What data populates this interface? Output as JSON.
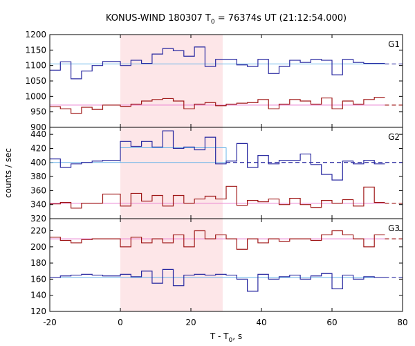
{
  "chart_data": {
    "type": "line",
    "title": "KONUS-WIND 180307 T",
    "title_sub": "0",
    "title_rest": " = 76374s UT (21:12:54.000)",
    "xlabel": "T - T",
    "xlabel_sub": "0",
    "xlabel_rest": ", s",
    "ylabel": "counts / sec",
    "xlim": [
      -20,
      80
    ],
    "x_ticks": [
      "-20",
      "0",
      "20",
      "40",
      "60",
      "80"
    ],
    "highlight_interval": [
      0,
      29
    ],
    "colors": {
      "blue": "#2828a0",
      "red": "#a01818",
      "fit_blue": "#6ab4e8",
      "fit_red": "#e87cd0",
      "highlight": "#fde6e8"
    },
    "panels": [
      {
        "label": "G1",
        "ylim": [
          900,
          1200
        ],
        "y_ticks": [
          "900",
          "950",
          "1000",
          "1050",
          "1100",
          "1150",
          "1200"
        ],
        "series": [
          {
            "color": "blue",
            "edges": [
              -20,
              -17,
              -14,
              -11,
              -8,
              -5,
              0,
              3,
              6,
              9,
              12,
              15,
              18,
              21,
              24,
              27,
              30,
              33,
              36,
              39,
              42,
              45,
              48,
              51,
              54,
              57,
              60,
              63,
              66,
              69,
              72,
              75
            ],
            "values": [
              1085,
              1112,
              1057,
              1082,
              1100,
              1113,
              1100,
              1117,
              1107,
              1137,
              1155,
              1148,
              1130,
              1160,
              1097,
              1120,
              1120,
              1102,
              1097,
              1120,
              1074,
              1097,
              1117,
              1110,
              1120,
              1117,
              1070,
              1120,
              1110,
              1107,
              1107
            ],
            "fit": {
              "value": 1105,
              "solid_to": 75,
              "dashed_to": 80
            }
          },
          {
            "color": "red",
            "edges": [
              -20,
              -17,
              -14,
              -11,
              -8,
              -5,
              0,
              3,
              6,
              9,
              12,
              15,
              18,
              21,
              24,
              27,
              30,
              33,
              36,
              39,
              42,
              45,
              48,
              51,
              54,
              57,
              60,
              63,
              66,
              69,
              72,
              75
            ],
            "values": [
              967,
              960,
              945,
              965,
              958,
              972,
              968,
              975,
              985,
              990,
              993,
              985,
              960,
              975,
              980,
              970,
              975,
              978,
              980,
              990,
              960,
              975,
              990,
              985,
              975,
              995,
              960,
              985,
              975,
              990,
              997
            ],
            "fit": {
              "value": 972,
              "solid_to": 75,
              "dashed_to": 80
            }
          }
        ]
      },
      {
        "label": "G2",
        "ylim": [
          320,
          450
        ],
        "y_ticks": [
          "320",
          "340",
          "360",
          "380",
          "400",
          "420",
          "440"
        ],
        "series": [
          {
            "color": "blue",
            "edges": [
              -20,
              -17,
              -14,
              -11,
              -8,
              -5,
              0,
              3,
              6,
              9,
              12,
              15,
              18,
              21,
              24,
              27,
              30,
              33,
              36,
              39,
              42,
              45,
              48,
              51,
              54,
              57,
              60,
              63,
              66,
              69,
              72,
              75
            ],
            "values": [
              405,
              393,
              398,
              400,
              402,
              403,
              430,
              423,
              430,
              422,
              445,
              420,
              422,
              418,
              436,
              398,
              402,
              427,
              393,
              410,
              398,
              403,
              403,
              412,
              397,
              383,
              375,
              402,
              398,
              403,
              398
            ],
            "fit": {
              "value": 400,
              "solid_to": 30,
              "dashed_to": 80,
              "offset_segment": {
                "value": 421,
                "from": 0,
                "to": 30
              }
            }
          },
          {
            "color": "red",
            "edges": [
              -20,
              -17,
              -14,
              -11,
              -8,
              -5,
              0,
              3,
              6,
              9,
              12,
              15,
              18,
              21,
              24,
              27,
              30,
              33,
              36,
              39,
              42,
              45,
              48,
              51,
              54,
              57,
              60,
              63,
              66,
              69,
              72,
              75
            ],
            "values": [
              341,
              343,
              335,
              342,
              342,
              355,
              338,
              356,
              345,
              353,
              338,
              353,
              342,
              348,
              352,
              348,
              366,
              339,
              346,
              344,
              348,
              340,
              349,
              340,
              336,
              346,
              342,
              347,
              338,
              365,
              343
            ],
            "fit": {
              "value": 342,
              "solid_to": 75,
              "dashed_to": 80
            }
          }
        ]
      },
      {
        "label": "G3",
        "ylim": [
          120,
          235
        ],
        "y_ticks": [
          "120",
          "140",
          "160",
          "180",
          "200",
          "220"
        ],
        "series": [
          {
            "color": "red",
            "edges": [
              -20,
              -17,
              -14,
              -11,
              -8,
              -5,
              0,
              3,
              6,
              9,
              12,
              15,
              18,
              21,
              24,
              27,
              30,
              33,
              36,
              39,
              42,
              45,
              48,
              51,
              54,
              57,
              60,
              63,
              66,
              69,
              72,
              75
            ],
            "values": [
              212,
              208,
              205,
              209,
              210,
              210,
              200,
              212,
              205,
              210,
              205,
              215,
              200,
              220,
              210,
              215,
              210,
              197,
              210,
              205,
              210,
              207,
              210,
              210,
              208,
              215,
              220,
              215,
              210,
              200,
              215
            ],
            "fit": {
              "value": 210,
              "solid_to": 75,
              "dashed_to": 80
            }
          },
          {
            "color": "blue",
            "edges": [
              -20,
              -17,
              -14,
              -11,
              -8,
              -5,
              0,
              3,
              6,
              9,
              12,
              15,
              18,
              21,
              24,
              27,
              30,
              33,
              36,
              39,
              42,
              45,
              48,
              51,
              54,
              57,
              60,
              63,
              66,
              69,
              72,
              75
            ],
            "values": [
              162,
              164,
              165,
              166,
              165,
              164,
              166,
              163,
              170,
              155,
              172,
              152,
              165,
              166,
              165,
              166,
              165,
              160,
              145,
              166,
              160,
              163,
              165,
              160,
              164,
              167,
              148,
              165,
              160,
              163,
              162
            ],
            "fit": {
              "value": 162,
              "solid_to": 75,
              "dashed_to": 80
            }
          }
        ]
      }
    ]
  }
}
